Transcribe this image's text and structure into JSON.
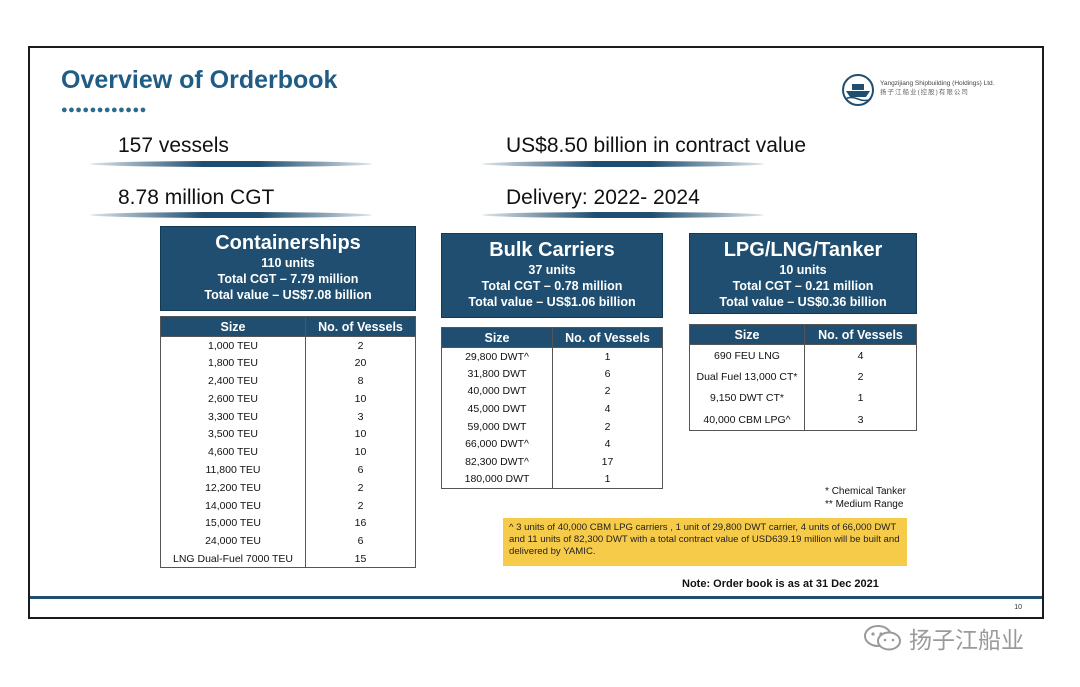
{
  "header": {
    "title": "Overview of Orderbook",
    "dots": "●●●●●●●●●●●●",
    "company_en": "Yangzijiang Shipbuilding (Holdings) Ltd.",
    "company_cn": "扬子江船业(控股)有限公司"
  },
  "stats": {
    "vessels": "157 vessels",
    "cgt": "8.78 million CGT",
    "value": "US$8.50 billion in contract value",
    "delivery": "Delivery: 2022- 2024"
  },
  "containerships": {
    "title": "Containerships",
    "units": "110 units",
    "cgt": "Total CGT – 7.79 million",
    "value": "Total value – US$7.08 billion",
    "col_size": "Size",
    "col_count": "No. of Vessels",
    "rows": [
      {
        "size": "1,000 TEU",
        "count": "2"
      },
      {
        "size": "1,800 TEU",
        "count": "20"
      },
      {
        "size": "2,400 TEU",
        "count": "8"
      },
      {
        "size": "2,600 TEU",
        "count": "10"
      },
      {
        "size": "3,300 TEU",
        "count": "3"
      },
      {
        "size": "3,500 TEU",
        "count": "10"
      },
      {
        "size": "4,600 TEU",
        "count": "10"
      },
      {
        "size": "11,800 TEU",
        "count": "6"
      },
      {
        "size": "12,200 TEU",
        "count": "2"
      },
      {
        "size": "14,000 TEU",
        "count": "2"
      },
      {
        "size": "15,000 TEU",
        "count": "16"
      },
      {
        "size": "24,000 TEU",
        "count": "6"
      },
      {
        "size": "LNG Dual-Fuel 7000 TEU",
        "count": "15"
      }
    ]
  },
  "bulk": {
    "title": "Bulk Carriers",
    "units": "37 units",
    "cgt": "Total CGT – 0.78 million",
    "value": "Total value – US$1.06 billion",
    "col_size": "Size",
    "col_count": "No. of Vessels",
    "rows": [
      {
        "size": "29,800 DWT^",
        "count": "1"
      },
      {
        "size": "31,800 DWT",
        "count": "6"
      },
      {
        "size": "40,000 DWT",
        "count": "2"
      },
      {
        "size": "45,000 DWT",
        "count": "4"
      },
      {
        "size": "59,000 DWT",
        "count": "2"
      },
      {
        "size": "66,000 DWT^",
        "count": "4"
      },
      {
        "size": "82,300 DWT^",
        "count": "17"
      },
      {
        "size": "180,000 DWT",
        "count": "1"
      }
    ]
  },
  "lpg": {
    "title": "LPG/LNG/Tanker",
    "units": "10 units",
    "cgt": "Total CGT – 0.21 million",
    "value": "Total value – US$0.36 billion",
    "col_size": "Size",
    "col_count": "No. of Vessels",
    "rows": [
      {
        "size": "690 FEU LNG",
        "count": "4"
      },
      {
        "size": "Dual Fuel 13,000 CT*",
        "count": "2"
      },
      {
        "size": "9,150 DWT CT*",
        "count": "1"
      },
      {
        "size": "40,000 CBM LPG^",
        "count": "3"
      }
    ]
  },
  "legend": {
    "line1": "* Chemical Tanker",
    "line2": "** Medium Range"
  },
  "footnote": "^ 3 units of 40,000 CBM LPG carriers , 1 unit of 29,800 DWT carrier, 4 units of 66,000 DWT and 11 units of 82,300 DWT with a total contract value of USD639.19 million will be built and delivered by YAMIC.",
  "as_at": "Note: Order book is as at 31 Dec 2021",
  "page_number": "10",
  "watermark": "扬子江船业",
  "colors": {
    "accent": "#1f4e70",
    "title": "#1f5d87",
    "note_bg": "#f7cb4a"
  }
}
